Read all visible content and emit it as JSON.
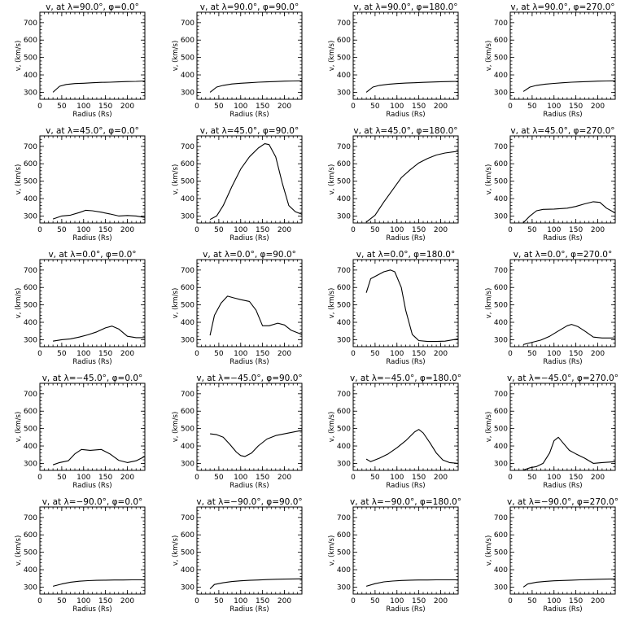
{
  "chart_data": [
    {
      "type": "line",
      "title": "v, at λ=90.0°, φ=0.0°",
      "xlabel": "Radius (Rs)",
      "ylabel": "v, (km/s)",
      "xlim": [
        0,
        240
      ],
      "ylim": [
        260,
        760
      ],
      "xticks": [
        0,
        50,
        100,
        150,
        200
      ],
      "yticks": [
        300,
        400,
        500,
        600,
        700
      ],
      "x": [
        30,
        45,
        60,
        80,
        100,
        120,
        140,
        160,
        180,
        200,
        220,
        240
      ],
      "y": [
        300,
        335,
        345,
        350,
        352,
        355,
        357,
        358,
        360,
        362,
        363,
        365
      ]
    },
    {
      "type": "line",
      "title": "v, at λ=90.0°, φ=90.0°",
      "xlabel": "Radius (Rs)",
      "ylabel": "v, (km/s)",
      "xlim": [
        0,
        240
      ],
      "ylim": [
        260,
        760
      ],
      "xticks": [
        0,
        50,
        100,
        150,
        200
      ],
      "yticks": [
        300,
        400,
        500,
        600,
        700
      ],
      "x": [
        30,
        45,
        60,
        80,
        100,
        120,
        140,
        160,
        180,
        200,
        220,
        240
      ],
      "y": [
        300,
        330,
        340,
        348,
        352,
        355,
        358,
        360,
        362,
        364,
        365,
        366
      ]
    },
    {
      "type": "line",
      "title": "v, at λ=90.0°, φ=180.0°",
      "xlabel": "Radius (Rs)",
      "ylabel": "v, (km/s)",
      "xlim": [
        0,
        240
      ],
      "ylim": [
        260,
        760
      ],
      "xticks": [
        0,
        50,
        100,
        150,
        200
      ],
      "yticks": [
        300,
        400,
        500,
        600,
        700
      ],
      "x": [
        30,
        45,
        60,
        80,
        100,
        120,
        140,
        160,
        180,
        200,
        220,
        240
      ],
      "y": [
        300,
        330,
        340,
        346,
        350,
        353,
        355,
        357,
        359,
        361,
        362,
        363
      ]
    },
    {
      "type": "line",
      "title": "v, at λ=90.0°, φ=270.0°",
      "xlabel": "Radius (Rs)",
      "ylabel": "v, (km/s)",
      "xlim": [
        0,
        240
      ],
      "ylim": [
        260,
        760
      ],
      "xticks": [
        0,
        50,
        100,
        150,
        200
      ],
      "yticks": [
        300,
        400,
        500,
        600,
        700
      ],
      "x": [
        30,
        45,
        60,
        80,
        100,
        120,
        140,
        160,
        180,
        200,
        220,
        240
      ],
      "y": [
        305,
        330,
        340,
        347,
        351,
        355,
        358,
        360,
        362,
        364,
        365,
        366
      ]
    },
    {
      "type": "line",
      "title": "v, at λ=45.0°, φ=0.0°",
      "xlabel": "Radius (Rs)",
      "ylabel": "v, (km/s)",
      "xlim": [
        0,
        240
      ],
      "ylim": [
        260,
        760
      ],
      "xticks": [
        0,
        50,
        100,
        150,
        200
      ],
      "yticks": [
        300,
        400,
        500,
        600,
        700
      ],
      "x": [
        30,
        50,
        70,
        90,
        105,
        120,
        140,
        160,
        180,
        200,
        220,
        240
      ],
      "y": [
        283,
        300,
        305,
        320,
        333,
        330,
        322,
        312,
        300,
        303,
        300,
        292
      ]
    },
    {
      "type": "line",
      "title": "v, at λ=45.0°, φ=90.0°",
      "xlabel": "Radius (Rs)",
      "ylabel": "v, (km/s)",
      "xlim": [
        0,
        240
      ],
      "ylim": [
        260,
        760
      ],
      "xticks": [
        0,
        50,
        100,
        150,
        200
      ],
      "yticks": [
        300,
        400,
        500,
        600,
        700
      ],
      "x": [
        30,
        45,
        60,
        80,
        100,
        120,
        140,
        155,
        165,
        180,
        195,
        210,
        225,
        240
      ],
      "y": [
        280,
        300,
        360,
        470,
        570,
        640,
        690,
        715,
        710,
        640,
        490,
        360,
        325,
        310
      ]
    },
    {
      "type": "line",
      "title": "v, at λ=45.0°, φ=180.0°",
      "xlabel": "Radius (Rs)",
      "ylabel": "v, (km/s)",
      "xlim": [
        0,
        240
      ],
      "ylim": [
        260,
        760
      ],
      "xticks": [
        0,
        50,
        100,
        150,
        200
      ],
      "yticks": [
        300,
        400,
        500,
        600,
        700
      ],
      "x": [
        30,
        50,
        70,
        90,
        110,
        130,
        150,
        170,
        190,
        210,
        240
      ],
      "y": [
        265,
        305,
        380,
        450,
        520,
        565,
        605,
        630,
        650,
        662,
        672
      ]
    },
    {
      "type": "line",
      "title": "v, at λ=45.0°, φ=270.0°",
      "xlabel": "Radius (Rs)",
      "ylabel": "v, (km/s)",
      "xlim": [
        0,
        240
      ],
      "ylim": [
        260,
        760
      ],
      "xticks": [
        0,
        50,
        100,
        150,
        200
      ],
      "yticks": [
        300,
        400,
        500,
        600,
        700
      ],
      "x": [
        30,
        45,
        60,
        75,
        100,
        130,
        150,
        170,
        190,
        205,
        220,
        240
      ],
      "y": [
        262,
        300,
        330,
        338,
        340,
        345,
        355,
        370,
        382,
        378,
        345,
        318
      ]
    },
    {
      "type": "line",
      "title": "v, at λ=0.0°, φ=0.0°",
      "xlabel": "Radius (Rs)",
      "ylabel": "v, (km/s)",
      "xlim": [
        0,
        240
      ],
      "ylim": [
        260,
        760
      ],
      "xticks": [
        0,
        50,
        100,
        150,
        200
      ],
      "yticks": [
        300,
        400,
        500,
        600,
        700
      ],
      "x": [
        30,
        50,
        70,
        90,
        110,
        130,
        150,
        165,
        180,
        200,
        220,
        240
      ],
      "y": [
        292,
        300,
        305,
        315,
        328,
        345,
        368,
        378,
        362,
        320,
        312,
        312
      ]
    },
    {
      "type": "line",
      "title": "v, at λ=0.0°, φ=90.0°",
      "xlabel": "Radius (Rs)",
      "ylabel": "v, (km/s)",
      "xlim": [
        0,
        240
      ],
      "ylim": [
        260,
        760
      ],
      "xticks": [
        0,
        50,
        100,
        150,
        200
      ],
      "yticks": [
        300,
        400,
        500,
        600,
        700
      ],
      "x": [
        30,
        40,
        55,
        70,
        85,
        100,
        120,
        135,
        150,
        165,
        185,
        200,
        215,
        240
      ],
      "y": [
        325,
        440,
        510,
        550,
        540,
        530,
        520,
        470,
        380,
        380,
        395,
        385,
        355,
        330
      ]
    },
    {
      "type": "line",
      "title": "v, at λ=0.0°, φ=180.0°",
      "xlabel": "Radius (Rs)",
      "ylabel": "v, (km/s)",
      "xlim": [
        0,
        240
      ],
      "ylim": [
        260,
        760
      ],
      "xticks": [
        0,
        50,
        100,
        150,
        200
      ],
      "yticks": [
        300,
        400,
        500,
        600,
        700
      ],
      "x": [
        30,
        40,
        55,
        70,
        85,
        95,
        110,
        120,
        135,
        150,
        170,
        190,
        210,
        240
      ],
      "y": [
        570,
        650,
        670,
        690,
        700,
        690,
        600,
        470,
        330,
        295,
        290,
        290,
        292,
        305
      ]
    },
    {
      "type": "line",
      "title": "v, at λ=0.0°, φ=270.0°",
      "xlabel": "Radius (Rs)",
      "ylabel": "v, (km/s)",
      "xlim": [
        0,
        240
      ],
      "ylim": [
        260,
        760
      ],
      "xticks": [
        0,
        50,
        100,
        150,
        200
      ],
      "yticks": [
        300,
        400,
        500,
        600,
        700
      ],
      "x": [
        30,
        50,
        70,
        90,
        110,
        130,
        140,
        155,
        170,
        190,
        210,
        240
      ],
      "y": [
        272,
        285,
        298,
        320,
        350,
        380,
        388,
        375,
        350,
        315,
        310,
        310
      ]
    },
    {
      "type": "line",
      "title": "v, at λ=−45.0°, φ=0.0°",
      "xlabel": "Radius (Rs)",
      "ylabel": "v, (km/s)",
      "xlim": [
        0,
        240
      ],
      "ylim": [
        260,
        760
      ],
      "xticks": [
        0,
        50,
        100,
        150,
        200
      ],
      "yticks": [
        300,
        400,
        500,
        600,
        700
      ],
      "x": [
        30,
        45,
        65,
        80,
        95,
        115,
        140,
        160,
        180,
        200,
        220,
        240
      ],
      "y": [
        292,
        305,
        315,
        355,
        380,
        375,
        380,
        355,
        318,
        305,
        315,
        340
      ]
    },
    {
      "type": "line",
      "title": "v, at λ=−45.0°, φ=90.0°",
      "xlabel": "Radius (Rs)",
      "ylabel": "v, (km/s)",
      "xlim": [
        0,
        240
      ],
      "ylim": [
        260,
        760
      ],
      "xticks": [
        0,
        50,
        100,
        150,
        200
      ],
      "yticks": [
        300,
        400,
        500,
        600,
        700
      ],
      "x": [
        30,
        45,
        60,
        75,
        90,
        100,
        110,
        125,
        140,
        160,
        180,
        200,
        220,
        240
      ],
      "y": [
        470,
        465,
        450,
        410,
        365,
        345,
        340,
        360,
        400,
        440,
        460,
        470,
        480,
        490
      ]
    },
    {
      "type": "line",
      "title": "v, at λ=−45.0°, φ=180.0°",
      "xlabel": "Radius (Rs)",
      "ylabel": "v, (km/s)",
      "xlim": [
        0,
        240
      ],
      "ylim": [
        260,
        760
      ],
      "xticks": [
        0,
        50,
        100,
        150,
        200
      ],
      "yticks": [
        300,
        400,
        500,
        600,
        700
      ],
      "x": [
        30,
        40,
        60,
        80,
        100,
        120,
        140,
        150,
        160,
        175,
        190,
        205,
        220,
        240
      ],
      "y": [
        325,
        310,
        330,
        355,
        390,
        430,
        480,
        495,
        475,
        420,
        360,
        320,
        305,
        300
      ]
    },
    {
      "type": "line",
      "title": "v, at λ=−45.0°, φ=270.0°",
      "xlabel": "Radius (Rs)",
      "ylabel": "v, (km/s)",
      "xlim": [
        0,
        240
      ],
      "ylim": [
        260,
        760
      ],
      "xticks": [
        0,
        50,
        100,
        150,
        200
      ],
      "yticks": [
        300,
        400,
        500,
        600,
        700
      ],
      "x": [
        30,
        45,
        60,
        75,
        90,
        100,
        110,
        120,
        135,
        150,
        170,
        190,
        210,
        240
      ],
      "y": [
        262,
        275,
        282,
        300,
        360,
        430,
        450,
        420,
        375,
        355,
        330,
        300,
        305,
        310
      ]
    },
    {
      "type": "line",
      "title": "v, at λ=−90.0°, φ=0.0°",
      "xlabel": "Radius (Rs)",
      "ylabel": "v, (km/s)",
      "xlim": [
        0,
        240
      ],
      "ylim": [
        260,
        760
      ],
      "xticks": [
        0,
        50,
        100,
        150,
        200
      ],
      "yticks": [
        300,
        400,
        500,
        600,
        700
      ],
      "x": [
        30,
        50,
        70,
        90,
        110,
        130,
        150,
        170,
        190,
        210,
        240
      ],
      "y": [
        305,
        318,
        328,
        334,
        337,
        339,
        340,
        341,
        341,
        342,
        342
      ]
    },
    {
      "type": "line",
      "title": "v, at λ=−90.0°, φ=90.0°",
      "xlabel": "Radius (Rs)",
      "ylabel": "v, (km/s)",
      "xlim": [
        0,
        240
      ],
      "ylim": [
        260,
        760
      ],
      "xticks": [
        0,
        50,
        100,
        150,
        200
      ],
      "yticks": [
        300,
        400,
        500,
        600,
        700
      ],
      "x": [
        30,
        40,
        60,
        80,
        100,
        120,
        140,
        160,
        180,
        200,
        220,
        240
      ],
      "y": [
        290,
        315,
        325,
        332,
        336,
        339,
        341,
        343,
        345,
        346,
        347,
        348
      ]
    },
    {
      "type": "line",
      "title": "v, at λ=−90.0°, φ=180.0°",
      "xlabel": "Radius (Rs)",
      "ylabel": "v, (km/s)",
      "xlim": [
        0,
        240
      ],
      "ylim": [
        260,
        760
      ],
      "xticks": [
        0,
        50,
        100,
        150,
        200
      ],
      "yticks": [
        300,
        400,
        500,
        600,
        700
      ],
      "x": [
        30,
        50,
        70,
        90,
        110,
        130,
        150,
        170,
        190,
        210,
        240
      ],
      "y": [
        305,
        320,
        330,
        335,
        338,
        340,
        341,
        341,
        342,
        342,
        342
      ]
    },
    {
      "type": "line",
      "title": "v, at λ=−90.0°, φ=270.0°",
      "xlabel": "Radius (Rs)",
      "ylabel": "v, (km/s)",
      "xlim": [
        0,
        240
      ],
      "ylim": [
        260,
        760
      ],
      "xticks": [
        0,
        50,
        100,
        150,
        200
      ],
      "yticks": [
        300,
        400,
        500,
        600,
        700
      ],
      "x": [
        30,
        40,
        60,
        80,
        100,
        120,
        140,
        160,
        180,
        200,
        220,
        240
      ],
      "y": [
        300,
        318,
        328,
        333,
        336,
        338,
        340,
        342,
        343,
        345,
        346,
        347
      ]
    }
  ]
}
